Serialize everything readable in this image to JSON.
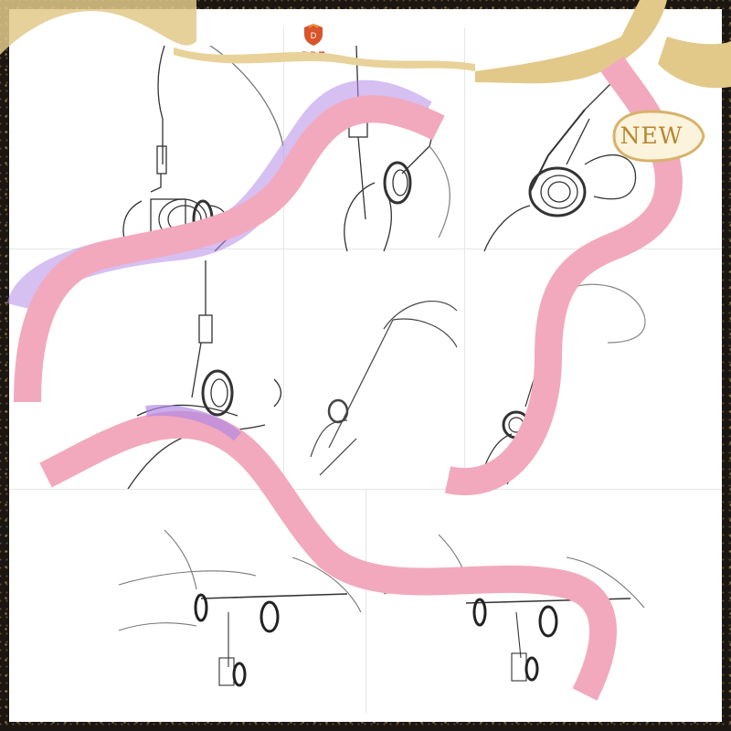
{
  "brand": {
    "name": "DDF",
    "color": "#c0392b"
  },
  "badge": {
    "text": "NEW",
    "color": "#b8862f"
  },
  "frame": {
    "border_color": "#1b1612",
    "speckle_color": "#d4af5f",
    "ribbon_gold": "#e2c98a"
  },
  "ribbon": {
    "color": "#f2a9bd",
    "shadow_color": "#b48ae6"
  },
  "panels": [
    {
      "name": "step-1-ring-on-thread"
    },
    {
      "name": "step-2-thread-through-ring"
    },
    {
      "name": "step-3-pull-thread"
    },
    {
      "name": "step-4-wrap-ring"
    },
    {
      "name": "step-5-rotate-wheel"
    },
    {
      "name": "step-6-feed-line"
    },
    {
      "name": "step-7-two-hands-left"
    },
    {
      "name": "step-8-two-hands-right"
    }
  ]
}
